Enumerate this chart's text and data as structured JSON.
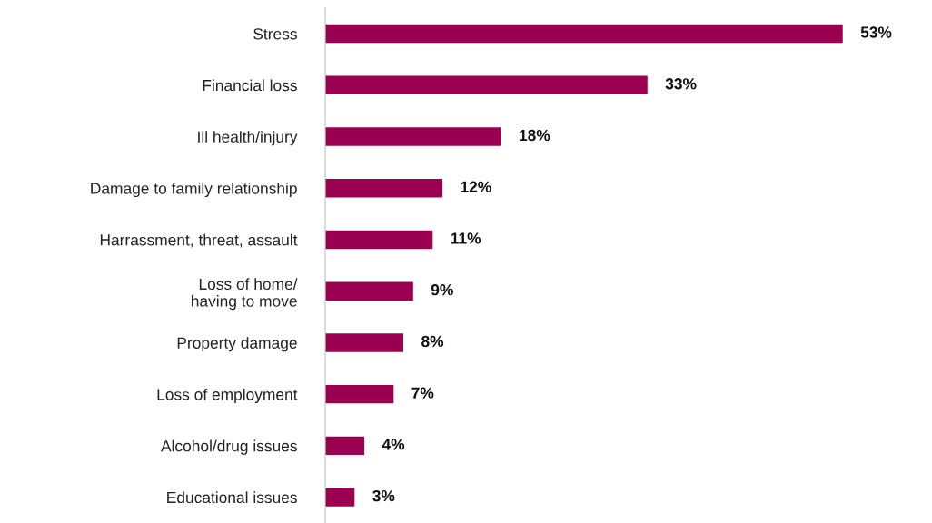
{
  "chart_data": {
    "type": "bar",
    "orientation": "horizontal",
    "color": "#9b0050",
    "categories": [
      "Stress",
      "Financial loss",
      "Ill health/injury",
      "Damage to family relationship",
      "Harrassment, threat, assault",
      "Loss of home/\nhaving to move",
      "Property damage",
      "Loss of employment",
      "Alcohol/drug issues",
      "Educational issues"
    ],
    "values": [
      53,
      33,
      18,
      12,
      11,
      9,
      8,
      7,
      4,
      3
    ],
    "value_labels": [
      "53%",
      "33%",
      "18%",
      "12%",
      "11%",
      "9%",
      "8%",
      "7%",
      "4%",
      "3%"
    ],
    "grid": false,
    "legend": false
  }
}
